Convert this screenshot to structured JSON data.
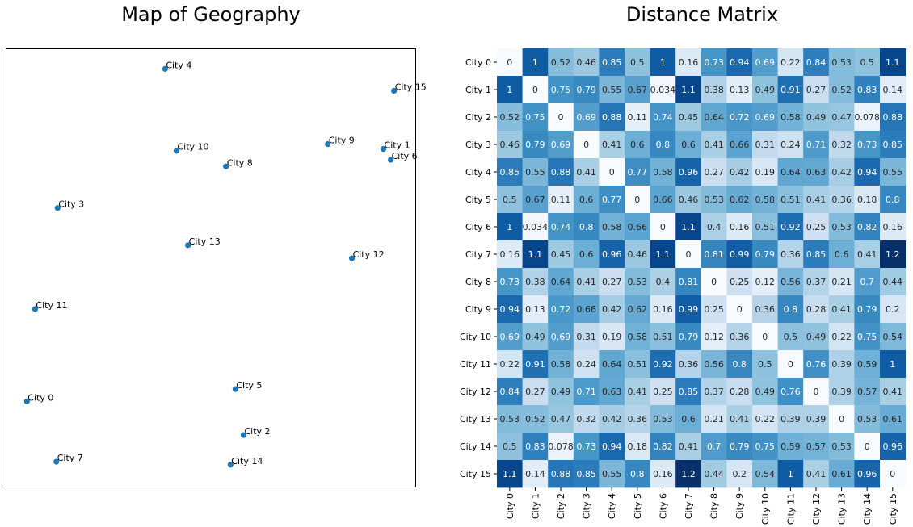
{
  "chart_data": [
    {
      "type": "scatter",
      "title": "Map of Geography",
      "xlabel": "",
      "ylabel": "",
      "xlim": [
        0,
        1
      ],
      "ylim": [
        0,
        1
      ],
      "grid": false,
      "ticks": "hidden",
      "marker_color": "#1f77b4",
      "points": [
        {
          "label": "City 0",
          "x": 0.05,
          "y": 0.195
        },
        {
          "label": "City 1",
          "x": 0.922,
          "y": 0.772
        },
        {
          "label": "City 2",
          "x": 0.58,
          "y": 0.118
        },
        {
          "label": "City 3",
          "x": 0.125,
          "y": 0.637
        },
        {
          "label": "City 4",
          "x": 0.388,
          "y": 0.955
        },
        {
          "label": "City 5",
          "x": 0.56,
          "y": 0.223
        },
        {
          "label": "City 6",
          "x": 0.94,
          "y": 0.747
        },
        {
          "label": "City 7",
          "x": 0.122,
          "y": 0.057
        },
        {
          "label": "City 8",
          "x": 0.537,
          "y": 0.732
        },
        {
          "label": "City 9",
          "x": 0.786,
          "y": 0.783
        },
        {
          "label": "City 10",
          "x": 0.416,
          "y": 0.768
        },
        {
          "label": "City 11",
          "x": 0.07,
          "y": 0.406
        },
        {
          "label": "City 12",
          "x": 0.845,
          "y": 0.522
        },
        {
          "label": "City 13",
          "x": 0.444,
          "y": 0.552
        },
        {
          "label": "City 14",
          "x": 0.548,
          "y": 0.05
        },
        {
          "label": "City 15",
          "x": 0.948,
          "y": 0.905
        }
      ]
    },
    {
      "type": "heatmap",
      "title": "Distance Matrix",
      "colormap": "Blues",
      "colormap_stops": [
        "#f7fbff",
        "#deebf7",
        "#c6dbef",
        "#9ecae1",
        "#6baed6",
        "#4292c6",
        "#2171b5",
        "#08519c",
        "#08306b"
      ],
      "vmin": 0,
      "vmax": 1.2,
      "row_labels": [
        "City 0",
        "City 1",
        "City 2",
        "City 3",
        "City 4",
        "City 5",
        "City 6",
        "City 7",
        "City 8",
        "City 9",
        "City 10",
        "City 11",
        "City 12",
        "City 13",
        "City 14",
        "City 15"
      ],
      "col_labels": [
        "City 0",
        "City 1",
        "City 2",
        "City 3",
        "City 4",
        "City 5",
        "City 6",
        "City 7",
        "City 8",
        "City 9",
        "City 10",
        "City 11",
        "City 12",
        "City 13",
        "City 14",
        "City 15"
      ],
      "values": [
        [
          0,
          1,
          0.52,
          0.46,
          0.85,
          0.5,
          1,
          0.16,
          0.73,
          0.94,
          0.69,
          0.22,
          0.84,
          0.53,
          0.5,
          1.1
        ],
        [
          1,
          0,
          0.75,
          0.79,
          0.55,
          0.67,
          0.034,
          1.1,
          0.38,
          0.13,
          0.49,
          0.91,
          0.27,
          0.52,
          0.83,
          0.14
        ],
        [
          0.52,
          0.75,
          0,
          0.69,
          0.88,
          0.11,
          0.74,
          0.45,
          0.64,
          0.72,
          0.69,
          0.58,
          0.49,
          0.47,
          0.078,
          0.88
        ],
        [
          0.46,
          0.79,
          0.69,
          0,
          0.41,
          0.6,
          0.8,
          0.6,
          0.41,
          0.66,
          0.31,
          0.24,
          0.71,
          0.32,
          0.73,
          0.85
        ],
        [
          0.85,
          0.55,
          0.88,
          0.41,
          0,
          0.77,
          0.58,
          0.96,
          0.27,
          0.42,
          0.19,
          0.64,
          0.63,
          0.42,
          0.94,
          0.55
        ],
        [
          0.5,
          0.67,
          0.11,
          0.6,
          0.77,
          0,
          0.66,
          0.46,
          0.53,
          0.62,
          0.58,
          0.51,
          0.41,
          0.36,
          0.18,
          0.8
        ],
        [
          1,
          0.034,
          0.74,
          0.8,
          0.58,
          0.66,
          0,
          1.1,
          0.4,
          0.16,
          0.51,
          0.92,
          0.25,
          0.53,
          0.82,
          0.16
        ],
        [
          0.16,
          1.1,
          0.45,
          0.6,
          0.96,
          0.46,
          1.1,
          0,
          0.81,
          0.99,
          0.79,
          0.36,
          0.85,
          0.6,
          0.41,
          1.2
        ],
        [
          0.73,
          0.38,
          0.64,
          0.41,
          0.27,
          0.53,
          0.4,
          0.81,
          0,
          0.25,
          0.12,
          0.56,
          0.37,
          0.21,
          0.7,
          0.44
        ],
        [
          0.94,
          0.13,
          0.72,
          0.66,
          0.42,
          0.62,
          0.16,
          0.99,
          0.25,
          0,
          0.36,
          0.8,
          0.28,
          0.41,
          0.79,
          0.2
        ],
        [
          0.69,
          0.49,
          0.69,
          0.31,
          0.19,
          0.58,
          0.51,
          0.79,
          0.12,
          0.36,
          0,
          0.5,
          0.49,
          0.22,
          0.75,
          0.54
        ],
        [
          0.22,
          0.91,
          0.58,
          0.24,
          0.64,
          0.51,
          0.92,
          0.36,
          0.56,
          0.8,
          0.5,
          0,
          0.76,
          0.39,
          0.59,
          1
        ],
        [
          0.84,
          0.27,
          0.49,
          0.71,
          0.63,
          0.41,
          0.25,
          0.85,
          0.37,
          0.28,
          0.49,
          0.76,
          0,
          0.39,
          0.57,
          0.41
        ],
        [
          0.53,
          0.52,
          0.47,
          0.32,
          0.42,
          0.36,
          0.53,
          0.6,
          0.21,
          0.41,
          0.22,
          0.39,
          0.39,
          0,
          0.53,
          0.61
        ],
        [
          0.5,
          0.83,
          0.078,
          0.73,
          0.94,
          0.18,
          0.82,
          0.41,
          0.7,
          0.79,
          0.75,
          0.59,
          0.57,
          0.53,
          0,
          0.96
        ],
        [
          1.1,
          0.14,
          0.88,
          0.85,
          0.55,
          0.8,
          0.16,
          1.2,
          0.44,
          0.2,
          0.54,
          1,
          0.41,
          0.61,
          0.96,
          0
        ]
      ]
    }
  ]
}
